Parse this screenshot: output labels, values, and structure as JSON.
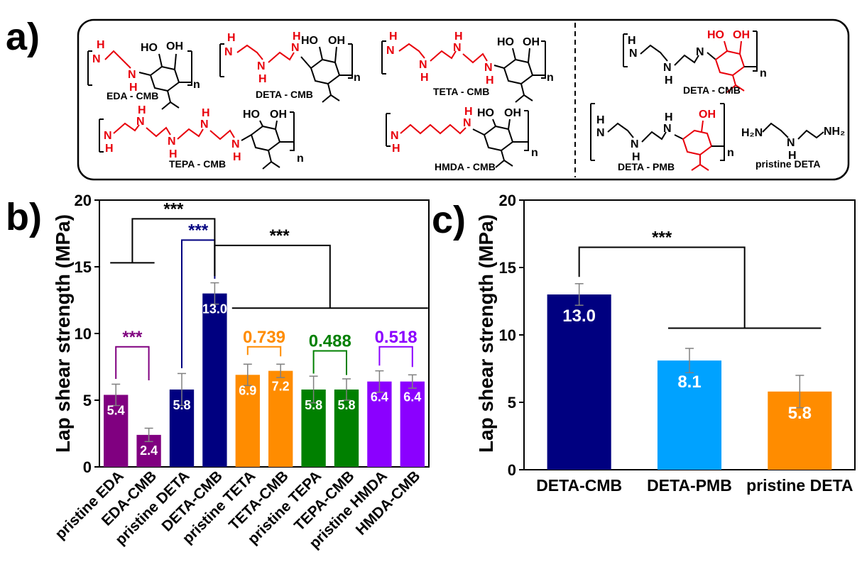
{
  "panel_labels": {
    "a": "a)",
    "b": "b)",
    "c": "c)"
  },
  "structures": {
    "edda_cmb": "EDA - CMB",
    "deta_cmb": "DETA - CMB",
    "teta_cmb": "TETA - CMB",
    "tepa_cmb": "TEPA - CMB",
    "hmda_cmb": "HMDA - CMB",
    "deta_cmb_right": "DETA - CMB",
    "deta_pmb": "DETA - PMB",
    "pristine_deta": "pristine DETA",
    "atom_HO": "HO",
    "atom_OH": "OH",
    "atom_H": "H",
    "atom_N": "N",
    "atom_n": "n",
    "atom_H2N": "H₂N",
    "atom_NH2": "NH₂"
  },
  "chart_data": [
    {
      "panel": "b",
      "type": "bar",
      "title": "",
      "xlabel": "",
      "ylabel": "Lap shear strength (MPa)",
      "ylim": [
        0,
        20
      ],
      "yticks": [
        "0",
        "5",
        "10",
        "15",
        "20"
      ],
      "categories": [
        "pristine EDA",
        "EDA-CMB",
        "pristine DETA",
        "DETA-CMB",
        "pristine TETA",
        "TETA-CMB",
        "pristine TEPA",
        "TEPA-CMB",
        "pristine HMDA",
        "HMDA-CMB"
      ],
      "values": [
        5.4,
        2.4,
        5.8,
        13.0,
        6.9,
        7.2,
        5.8,
        5.8,
        6.4,
        6.4
      ],
      "errors": [
        0.8,
        0.5,
        1.2,
        0.8,
        0.8,
        0.5,
        1.0,
        0.8,
        0.8,
        0.5
      ],
      "value_labels": [
        "5.4",
        "2.4",
        "5.8",
        "13.0",
        "6.9",
        "7.2",
        "5.8",
        "5.8",
        "6.4",
        "6.4"
      ],
      "colors": [
        "#800080",
        "#800080",
        "#000080",
        "#000080",
        "#ff8c00",
        "#ff8c00",
        "#008000",
        "#008000",
        "#8b00ff",
        "#8b00ff"
      ],
      "annotations": [
        {
          "text": "***",
          "color": "#800080",
          "between": [
            "pristine EDA",
            "EDA-CMB"
          ],
          "at": 9.0
        },
        {
          "text": "0.739",
          "color": "#ff8c00",
          "between": [
            "pristine TETA",
            "TETA-CMB"
          ],
          "at": 9.0
        },
        {
          "text": "0.488",
          "color": "#008000",
          "between": [
            "pristine TEPA",
            "TEPA-CMB"
          ],
          "at": 8.7
        },
        {
          "text": "0.518",
          "color": "#8b00ff",
          "between": [
            "pristine HMDA",
            "HMDA-CMB"
          ],
          "at": 9.0
        },
        {
          "text": "***",
          "color": "#000080",
          "between": [
            "pristine DETA",
            "DETA-CMB"
          ],
          "at": 17.0
        },
        {
          "text": "***",
          "color": "#000000",
          "between": [
            "EDA group",
            "DETA-CMB"
          ],
          "at": 18.6
        },
        {
          "text": "***",
          "color": "#000000",
          "between": [
            "DETA-CMB",
            "TETA-HMDA groups"
          ],
          "at": 16.6
        }
      ]
    },
    {
      "panel": "c",
      "type": "bar",
      "title": "",
      "xlabel": "",
      "ylabel": "Lap shear strength (MPa)",
      "ylim": [
        0,
        20
      ],
      "yticks": [
        "0",
        "5",
        "10",
        "15",
        "20"
      ],
      "categories": [
        "DETA-CMB",
        "DETA-PMB",
        "pristine DETA"
      ],
      "values": [
        13.0,
        8.1,
        5.8
      ],
      "errors": [
        0.8,
        0.9,
        1.2
      ],
      "value_labels": [
        "13.0",
        "8.1",
        "5.8"
      ],
      "colors": [
        "#000080",
        "#00a2ff",
        "#ff8c00"
      ],
      "annotations": [
        {
          "text": "***",
          "color": "#000000",
          "between": [
            "DETA-CMB",
            "DETA-PMB / pristine DETA"
          ],
          "at": 16.5
        }
      ]
    }
  ]
}
